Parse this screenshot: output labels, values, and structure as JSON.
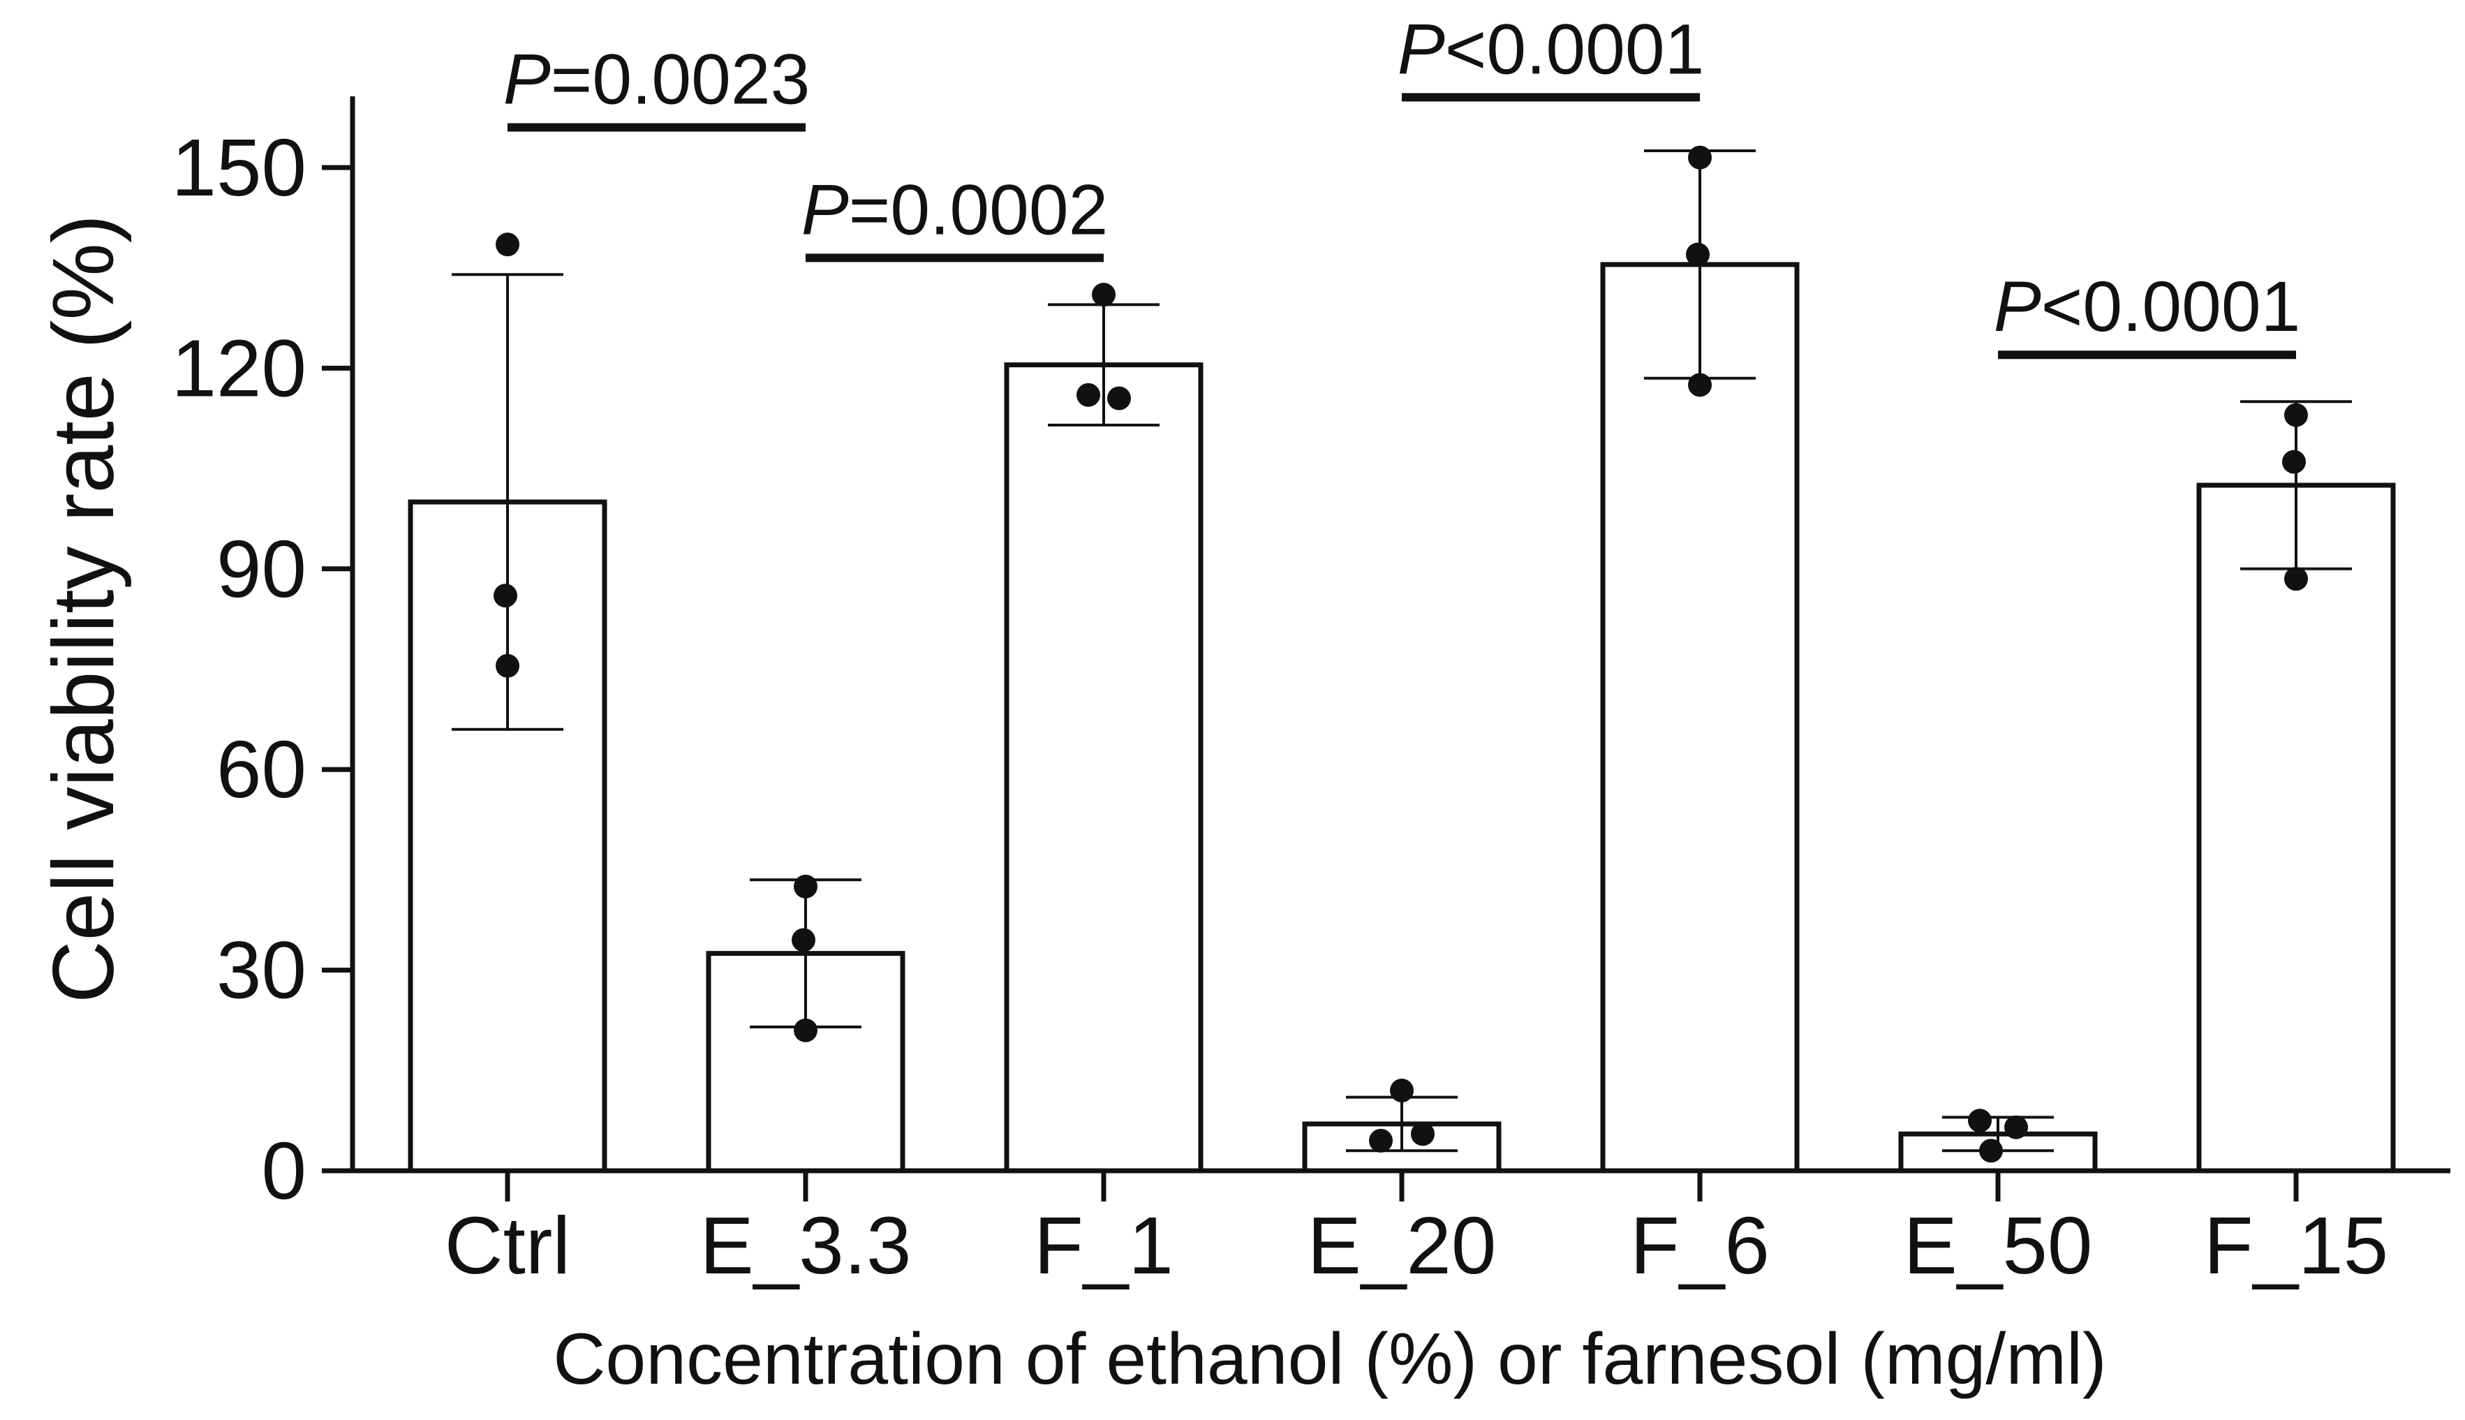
{
  "chart_data": {
    "type": "bar",
    "title": "",
    "xlabel": "Concentration of ethanol (%) or farnesol (mg/ml)",
    "ylabel": "Cell viability rate (%)",
    "ylim": [
      0,
      160
    ],
    "yticks": [
      0,
      30,
      60,
      90,
      120,
      150
    ],
    "grid": false,
    "categories": [
      "Ctrl",
      "E_3.3",
      "F_1",
      "E_20",
      "F_6",
      "E_50",
      "F_15"
    ],
    "values": [
      100,
      32.5,
      120.5,
      7,
      135.5,
      5.5,
      102.5
    ],
    "error": [
      34,
      11,
      9,
      4,
      17,
      2.5,
      12.5
    ],
    "points": [
      [
        138.5,
        86,
        75.5
      ],
      [
        42.5,
        34.5,
        21
      ],
      [
        131,
        116,
        115.5
      ],
      [
        12,
        4.5,
        5.5
      ],
      [
        151.5,
        137,
        117.5
      ],
      [
        7.5,
        3,
        6.5
      ],
      [
        113,
        106,
        88.5
      ]
    ],
    "bar_fill": "#ffffff",
    "bar_stroke": "#111111",
    "point_color": "#111111",
    "significance": [
      {
        "from": "Ctrl",
        "to": "E_3.3",
        "y": 156,
        "italic": "P",
        "rest": "=0.0023"
      },
      {
        "from": "E_3.3",
        "to": "F_1",
        "y": 136.5,
        "italic": "P",
        "rest": "=0.0002"
      },
      {
        "from": "E_20",
        "to": "F_6",
        "y": 160.5,
        "italic": "P",
        "rest": "<0.0001"
      },
      {
        "from": "E_50",
        "to": "F_15",
        "y": 122,
        "italic": "P",
        "rest": "<0.0001"
      }
    ]
  }
}
